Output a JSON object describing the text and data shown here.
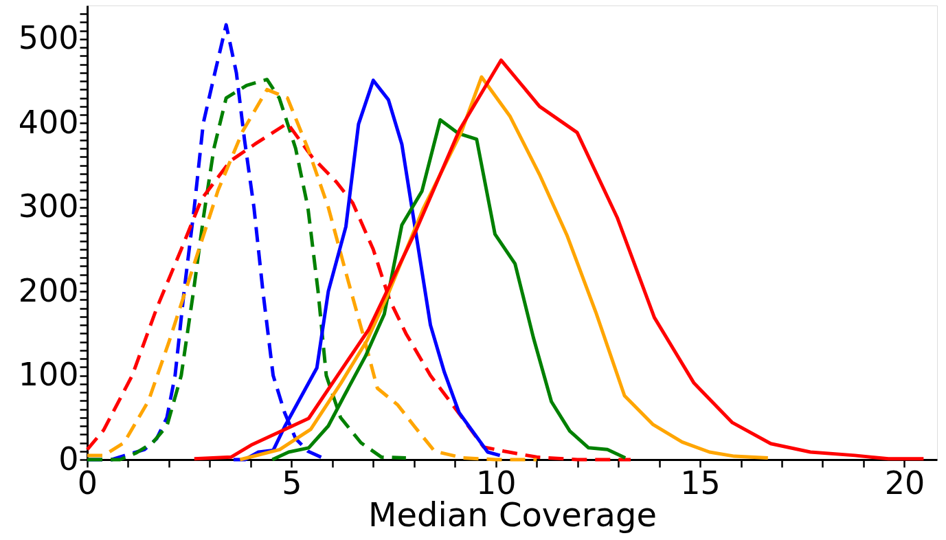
{
  "chart_data": {
    "type": "line",
    "xlabel": "Median Coverage",
    "xlim": [
      0,
      20.8
    ],
    "ylim": [
      0,
      540
    ],
    "xticks": [
      0,
      {
        "value": 1,
        "label": null
      },
      {
        "value": 2,
        "label": null
      },
      {
        "value": 3,
        "label": null
      },
      {
        "value": 4,
        "label": null
      },
      5,
      {
        "value": 6,
        "label": null
      },
      {
        "value": 7,
        "label": null
      },
      {
        "value": 8,
        "label": null
      },
      {
        "value": 9,
        "label": null
      },
      10,
      {
        "value": 11,
        "label": null
      },
      {
        "value": 12,
        "label": null
      },
      {
        "value": 13,
        "label": null
      },
      {
        "value": 14,
        "label": null
      },
      15,
      {
        "value": 16,
        "label": null
      },
      {
        "value": 17,
        "label": null
      },
      {
        "value": 18,
        "label": null
      },
      {
        "value": 19,
        "label": null
      },
      20
    ],
    "yticks": [
      0,
      {
        "value": 10,
        "label": null
      },
      {
        "value": 20,
        "label": null
      },
      {
        "value": 30,
        "label": null
      },
      {
        "value": 40,
        "label": null
      },
      {
        "value": 50,
        "label": null
      },
      {
        "value": 60,
        "label": null
      },
      {
        "value": 70,
        "label": null
      },
      {
        "value": 80,
        "label": null
      },
      {
        "value": 90,
        "label": null
      },
      100,
      {
        "value": 110,
        "label": null
      },
      {
        "value": 120,
        "label": null
      },
      {
        "value": 130,
        "label": null
      },
      {
        "value": 140,
        "label": null
      },
      {
        "value": 150,
        "label": null
      },
      {
        "value": 160,
        "label": null
      },
      {
        "value": 170,
        "label": null
      },
      {
        "value": 180,
        "label": null
      },
      {
        "value": 190,
        "label": null
      },
      200,
      {
        "value": 210,
        "label": null
      },
      {
        "value": 220,
        "label": null
      },
      {
        "value": 230,
        "label": null
      },
      {
        "value": 240,
        "label": null
      },
      {
        "value": 250,
        "label": null
      },
      {
        "value": 260,
        "label": null
      },
      {
        "value": 270,
        "label": null
      },
      {
        "value": 280,
        "label": null
      },
      {
        "value": 290,
        "label": null
      },
      300,
      {
        "value": 310,
        "label": null
      },
      {
        "value": 320,
        "label": null
      },
      {
        "value": 330,
        "label": null
      },
      {
        "value": 340,
        "label": null
      },
      {
        "value": 350,
        "label": null
      },
      {
        "value": 360,
        "label": null
      },
      {
        "value": 370,
        "label": null
      },
      {
        "value": 380,
        "label": null
      },
      {
        "value": 390,
        "label": null
      },
      400,
      {
        "value": 410,
        "label": null
      },
      {
        "value": 420,
        "label": null
      },
      {
        "value": 430,
        "label": null
      },
      {
        "value": 440,
        "label": null
      },
      {
        "value": 450,
        "label": null
      },
      {
        "value": 460,
        "label": null
      },
      {
        "value": 470,
        "label": null
      },
      {
        "value": 480,
        "label": null
      },
      {
        "value": 490,
        "label": null
      },
      500,
      {
        "value": 510,
        "label": null
      },
      {
        "value": 520,
        "label": null
      },
      {
        "value": 530,
        "label": null
      }
    ],
    "grid": false,
    "series": [
      {
        "color": "#0000ff",
        "line_style": "dashed",
        "x": [
          0,
          0.6,
          1,
          1.4,
          1.7,
          1.95,
          2.15,
          2.37,
          2.62,
          2.84,
          3.1,
          3.4,
          3.65,
          3.85,
          4.08,
          4.3,
          4.55,
          4.83,
          5.1,
          5.4,
          5.85
        ],
        "values": [
          0,
          0,
          6,
          12,
          25,
          50,
          100,
          200,
          300,
          400,
          455,
          517,
          460,
          380,
          300,
          200,
          100,
          56,
          25,
          10,
          0
        ]
      },
      {
        "color": "#008000",
        "line_style": "dashed",
        "x": [
          0,
          0.8,
          1.2,
          1.6,
          1.95,
          2.3,
          2.6,
          2.85,
          3.1,
          3.4,
          3.9,
          4.4,
          4.7,
          5.1,
          5.4,
          5.65,
          5.85,
          6.2,
          6.7,
          7.2,
          7.8
        ],
        "values": [
          0,
          0,
          8,
          20,
          40,
          100,
          200,
          290,
          370,
          430,
          445,
          452,
          430,
          370,
          300,
          200,
          100,
          50,
          20,
          3,
          2
        ]
      },
      {
        "color": "#ff0000",
        "line_style": "dashed",
        "x": [
          0,
          0.4,
          1.1,
          1.7,
          2.3,
          2.8,
          3.5,
          4.1,
          4.9,
          5.5,
          6.1,
          6.5,
          7.0,
          7.4,
          7.8,
          8.4,
          9.1,
          9.7,
          10.2,
          11.0,
          12.0,
          13.3
        ],
        "values": [
          12,
          35,
          100,
          180,
          250,
          310,
          355,
          375,
          400,
          360,
          330,
          305,
          250,
          190,
          150,
          100,
          55,
          15,
          10,
          3,
          0,
          0
        ]
      },
      {
        "color": "#ffa500",
        "line_style": "dashed",
        "x": [
          0,
          0.4,
          0.9,
          1.5,
          2.0,
          2.6,
          3.2,
          3.8,
          4.4,
          4.9,
          5.4,
          5.9,
          6.4,
          6.8,
          7.1,
          7.6,
          8.0,
          8.5,
          9.2,
          10,
          11
        ],
        "values": [
          5,
          5,
          20,
          70,
          140,
          230,
          320,
          390,
          440,
          430,
          370,
          300,
          210,
          140,
          85,
          65,
          40,
          10,
          2,
          0,
          0
        ]
      },
      {
        "color": "#0000ff",
        "line_style": "solid",
        "x": [
          3.58,
          3.86,
          4.19,
          4.55,
          4.83,
          5.62,
          5.9,
          6.33,
          6.64,
          7.0,
          7.37,
          7.7,
          8.4,
          8.74,
          9.1,
          9.8,
          10.1
        ],
        "values": [
          0,
          0,
          9,
          11,
          39,
          109,
          200,
          277,
          399,
          451,
          428,
          375,
          160,
          104,
          56,
          9,
          5
        ]
      },
      {
        "color": "#008000",
        "line_style": "solid",
        "x": [
          4.53,
          4.93,
          5.42,
          5.9,
          6.29,
          6.81,
          7.27,
          7.7,
          8.19,
          8.64,
          9.08,
          9.53,
          9.98,
          10.47,
          10.92,
          11.36,
          11.81,
          12.27,
          12.73,
          13.17
        ],
        "values": [
          0,
          9,
          14,
          40,
          76,
          123,
          173,
          279,
          319,
          404,
          388,
          381,
          268,
          233,
          145,
          69,
          34,
          14,
          12,
          2
        ]
      },
      {
        "color": "#ffa500",
        "line_style": "solid",
        "x": [
          3.74,
          4.71,
          5.47,
          6.21,
          6.85,
          7.33,
          8.22,
          9.16,
          9.65,
          10.35,
          11.07,
          11.74,
          12.45,
          13.15,
          13.84,
          14.56,
          15.23,
          15.84,
          16.66
        ],
        "values": [
          0,
          12,
          36,
          91,
          142,
          193,
          298,
          390,
          455,
          408,
          339,
          267,
          175,
          76,
          42,
          21,
          9,
          4,
          2
        ]
      },
      {
        "color": "#ff0000",
        "line_style": "solid",
        "x": [
          2.62,
          3.52,
          4.04,
          5.42,
          6.14,
          6.88,
          8.07,
          9.11,
          10.13,
          11.07,
          11.99,
          12.97,
          13.88,
          14.85,
          15.79,
          16.73,
          17.7,
          18.79,
          19.61,
          20.47
        ],
        "values": [
          1,
          3,
          18,
          49,
          101,
          154,
          275,
          392,
          475,
          420,
          389,
          288,
          169,
          91,
          44,
          19,
          9,
          5,
          1,
          1
        ]
      }
    ]
  }
}
